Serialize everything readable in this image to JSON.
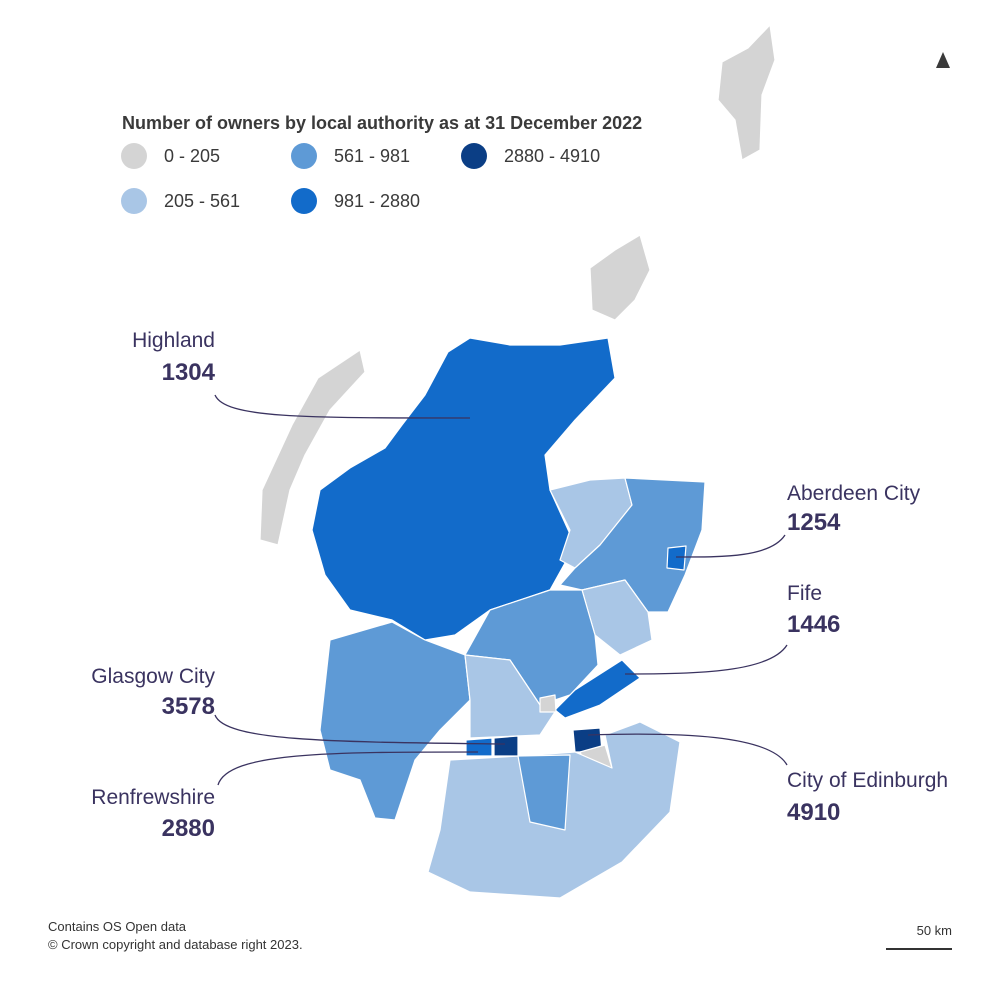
{
  "map": {
    "legend": {
      "title": "Number of owners by local authority as at 31 December 2022",
      "classes": [
        {
          "label": "0 - 205",
          "color": "#d4d4d4"
        },
        {
          "label": "205 - 561",
          "color": "#a9c6e6"
        },
        {
          "label": "561 - 981",
          "color": "#5e9ad6"
        },
        {
          "label": "981 - 2880",
          "color": "#126bca"
        },
        {
          "label": "2880 - 4910",
          "color": "#0b3e85"
        }
      ]
    },
    "callouts": [
      {
        "name": "Highland",
        "value": 1304
      },
      {
        "name": "Aberdeen City",
        "value": 1254
      },
      {
        "name": "Fife",
        "value": 1446
      },
      {
        "name": "Glasgow City",
        "value": 3578
      },
      {
        "name": "City of Edinburgh",
        "value": 4910
      },
      {
        "name": "Renfrewshire",
        "value": 2880
      }
    ],
    "footer": [
      "Contains OS Open data",
      "© Crown copyright and database right 2023."
    ],
    "scale_bar": "50 km"
  }
}
